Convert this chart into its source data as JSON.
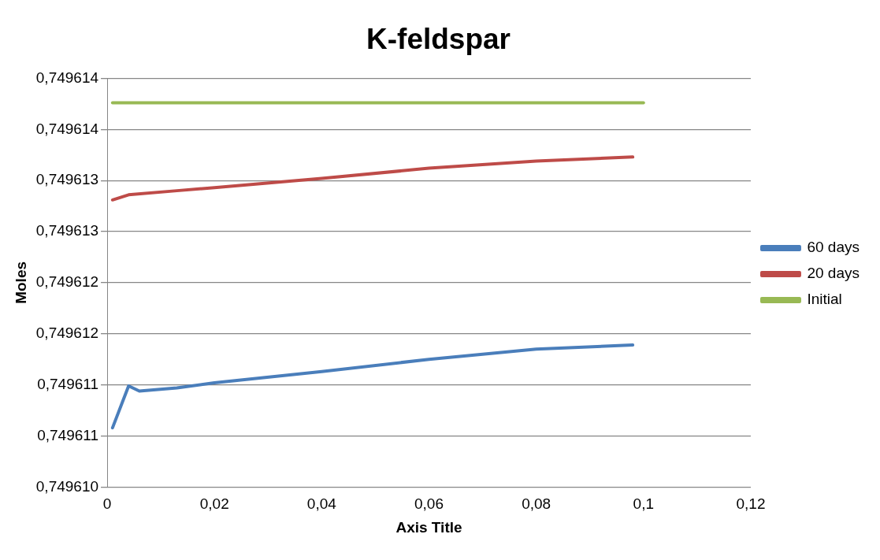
{
  "chart_data": {
    "type": "line",
    "title": "K-feldspar",
    "xlabel": "Axis Title",
    "ylabel": "Moles",
    "xlim": [
      0,
      0.12
    ],
    "xticks": [
      0,
      {
        "value": 0.02,
        "label": "0,02"
      },
      {
        "value": 0.04,
        "label": "0,04"
      },
      {
        "value": 0.06,
        "label": "0,06"
      },
      {
        "value": 0.08,
        "label": "0,08"
      },
      {
        "value": 0.1,
        "label": "0,1"
      },
      {
        "value": 0.12,
        "label": "0,12"
      }
    ],
    "ylim": [
      0.74961,
      0.749614
    ],
    "yticks": [
      {
        "value": 0.74961,
        "label": "0,749610"
      },
      {
        "value": 0.7496105,
        "label": "0,749611"
      },
      {
        "value": 0.749611,
        "label": "0,749611"
      },
      {
        "value": 0.7496115,
        "label": "0,749612"
      },
      {
        "value": 0.749612,
        "label": "0,749612"
      },
      {
        "value": 0.7496125,
        "label": "0,749613"
      },
      {
        "value": 0.749613,
        "label": "0,749613"
      },
      {
        "value": 0.7496135,
        "label": "0,749614"
      },
      {
        "value": 0.749614,
        "label": "0,749614"
      }
    ],
    "grid": "y",
    "legend": "right",
    "marker": "none",
    "line_style": "solid",
    "series": [
      {
        "name": "60 days",
        "color": "#4a7ebb",
        "x": [
          0.001,
          0.004,
          0.006,
          0.013,
          0.02,
          0.04,
          0.06,
          0.08,
          0.098
        ],
        "values": [
          0.74961058,
          0.74961099,
          0.74961094,
          0.74961097,
          0.74961102,
          0.74961113,
          0.74961125,
          0.74961135,
          0.74961139
        ]
      },
      {
        "name": "20 days",
        "color": "#be4b48",
        "x": [
          0.001,
          0.004,
          0.013,
          0.02,
          0.04,
          0.06,
          0.08,
          0.098
        ],
        "values": [
          0.74961281,
          0.74961286,
          0.7496129,
          0.74961293,
          0.74961302,
          0.74961312,
          0.74961319,
          0.74961323
        ]
      },
      {
        "name": "Initial",
        "color": "#98b954",
        "x": [
          0.001,
          0.1
        ],
        "values": [
          0.74961376,
          0.74961376
        ]
      }
    ]
  }
}
